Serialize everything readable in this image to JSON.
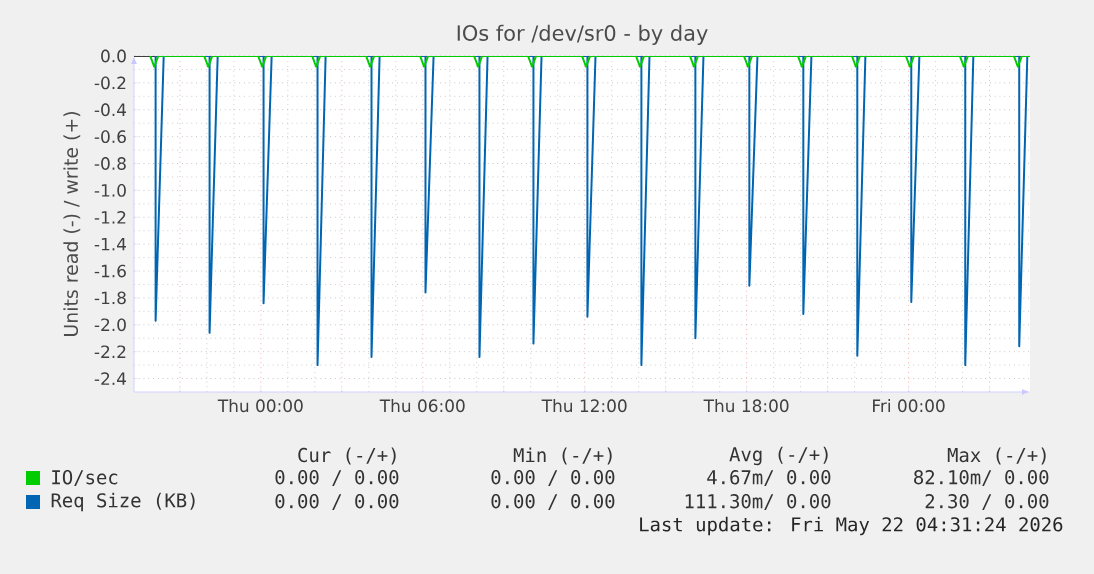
{
  "chart_data": {
    "type": "line",
    "title": "IOs for /dev/sr0 - by day",
    "ylabel": "Units read (-) / write (+)",
    "xlim": [
      "2026-05-20T19:18",
      "2026-05-22T04:30"
    ],
    "ylim": [
      -2.5,
      0
    ],
    "xticks": [
      {
        "value": "2026-05-20T21:00",
        "label": null
      },
      {
        "value": "2026-05-21T00:00",
        "label": "Thu 00:00"
      },
      {
        "value": "2026-05-21T03:00",
        "label": null
      },
      {
        "value": "2026-05-21T06:00",
        "label": "Thu 06:00"
      },
      {
        "value": "2026-05-21T09:00",
        "label": null
      },
      {
        "value": "2026-05-21T12:00",
        "label": "Thu 12:00"
      },
      {
        "value": "2026-05-21T15:00",
        "label": null
      },
      {
        "value": "2026-05-21T18:00",
        "label": "Thu 18:00"
      },
      {
        "value": "2026-05-21T21:00",
        "label": null
      },
      {
        "value": "2026-05-22T00:00",
        "label": "Fri 00:00"
      },
      {
        "value": "2026-05-22T03:00",
        "label": null
      }
    ],
    "yticks": [
      {
        "value": 0,
        "label": "0.0"
      },
      {
        "value": -0.2,
        "label": "-0.2"
      },
      {
        "value": -0.4,
        "label": "-0.4"
      },
      {
        "value": -0.6,
        "label": "-0.6"
      },
      {
        "value": -0.8,
        "label": "-0.8"
      },
      {
        "value": -1.0,
        "label": "-1.0"
      },
      {
        "value": -1.2,
        "label": "-1.2"
      },
      {
        "value": -1.4,
        "label": "-1.4"
      },
      {
        "value": -1.6,
        "label": "-1.6"
      },
      {
        "value": -1.8,
        "label": "-1.8"
      },
      {
        "value": -2.0,
        "label": "-2.0"
      },
      {
        "value": -2.2,
        "label": "-2.2"
      },
      {
        "value": -2.4,
        "label": "-2.4"
      }
    ],
    "grid": true,
    "legend": "bottom",
    "marker": "none",
    "line_style": "solid",
    "ref_lines": [
      {
        "axis": "y",
        "value": 0,
        "color": "#000000"
      }
    ],
    "series": [
      {
        "name": "IO/sec",
        "color": "#00cc00",
        "x": [
          "2026-05-20T19:54",
          "2026-05-20T20:03",
          "2026-05-20T20:12",
          "2026-05-20T21:54",
          "2026-05-20T22:03",
          "2026-05-20T22:12",
          "2026-05-20T23:54",
          "2026-05-21T00:03",
          "2026-05-21T00:12",
          "2026-05-21T01:54",
          "2026-05-21T02:03",
          "2026-05-21T02:12",
          "2026-05-21T03:54",
          "2026-05-21T04:03",
          "2026-05-21T04:12",
          "2026-05-21T05:54",
          "2026-05-21T06:03",
          "2026-05-21T06:12",
          "2026-05-21T07:54",
          "2026-05-21T08:03",
          "2026-05-21T08:12",
          "2026-05-21T09:54",
          "2026-05-21T10:03",
          "2026-05-21T10:12",
          "2026-05-21T11:54",
          "2026-05-21T12:03",
          "2026-05-21T12:12",
          "2026-05-21T13:54",
          "2026-05-21T14:03",
          "2026-05-21T14:12",
          "2026-05-21T15:54",
          "2026-05-21T16:03",
          "2026-05-21T16:12",
          "2026-05-21T17:54",
          "2026-05-21T18:03",
          "2026-05-21T18:12",
          "2026-05-21T19:54",
          "2026-05-21T20:03",
          "2026-05-21T20:12",
          "2026-05-21T21:54",
          "2026-05-21T22:03",
          "2026-05-21T22:12",
          "2026-05-21T23:54",
          "2026-05-22T00:03",
          "2026-05-22T00:12",
          "2026-05-22T01:54",
          "2026-05-22T02:03",
          "2026-05-22T02:12",
          "2026-05-22T03:54",
          "2026-05-22T04:03",
          "2026-05-22T04:12",
          "2026-05-22T04:30"
        ],
        "values": [
          0,
          -0.08,
          0,
          0,
          -0.08,
          0,
          0,
          -0.08,
          0,
          0,
          -0.08,
          0,
          0,
          -0.08,
          0,
          0,
          -0.08,
          0,
          0,
          -0.08,
          0,
          0,
          -0.08,
          0,
          0,
          -0.08,
          0,
          0,
          -0.08,
          0,
          0,
          -0.08,
          0,
          0,
          -0.08,
          0,
          0,
          -0.08,
          0,
          0,
          -0.08,
          0,
          0,
          -0.08,
          0,
          0,
          -0.08,
          0,
          0,
          -0.08,
          0,
          0
        ]
      },
      {
        "name": "Req Size (KB)",
        "color": "#0066b3",
        "x": [
          "2026-05-20T20:06",
          "2026-05-20T20:06",
          "2026-05-20T20:24",
          "2026-05-20T22:06",
          "2026-05-20T22:06",
          "2026-05-20T22:24",
          "2026-05-21T00:06",
          "2026-05-21T00:06",
          "2026-05-21T00:24",
          "2026-05-21T02:06",
          "2026-05-21T02:06",
          "2026-05-21T02:24",
          "2026-05-21T04:06",
          "2026-05-21T04:06",
          "2026-05-21T04:24",
          "2026-05-21T06:06",
          "2026-05-21T06:06",
          "2026-05-21T06:24",
          "2026-05-21T08:06",
          "2026-05-21T08:06",
          "2026-05-21T08:24",
          "2026-05-21T10:06",
          "2026-05-21T10:06",
          "2026-05-21T10:24",
          "2026-05-21T12:06",
          "2026-05-21T12:06",
          "2026-05-21T12:24",
          "2026-05-21T14:06",
          "2026-05-21T14:06",
          "2026-05-21T14:24",
          "2026-05-21T16:06",
          "2026-05-21T16:06",
          "2026-05-21T16:24",
          "2026-05-21T18:06",
          "2026-05-21T18:06",
          "2026-05-21T18:24",
          "2026-05-21T20:06",
          "2026-05-21T20:06",
          "2026-05-21T20:24",
          "2026-05-21T22:06",
          "2026-05-21T22:06",
          "2026-05-21T22:24",
          "2026-05-22T00:06",
          "2026-05-22T00:06",
          "2026-05-22T00:24",
          "2026-05-22T02:06",
          "2026-05-22T02:06",
          "2026-05-22T02:24",
          "2026-05-22T04:06",
          "2026-05-22T04:06",
          "2026-05-22T04:24",
          "2026-05-22T04:30"
        ],
        "values": [
          0,
          -1.97,
          0,
          0,
          -2.06,
          0,
          0,
          -1.84,
          0,
          0,
          -2.3,
          0,
          0,
          -2.24,
          0,
          0,
          -1.76,
          0,
          0,
          -2.24,
          0,
          0,
          -2.14,
          0,
          0,
          -1.94,
          0,
          0,
          -2.3,
          0,
          0,
          -2.1,
          0,
          0,
          -1.71,
          0,
          0,
          -1.92,
          0,
          0,
          -2.23,
          0,
          0,
          -1.83,
          0,
          0,
          -2.3,
          0,
          0,
          -2.16,
          0,
          0
        ]
      }
    ],
    "annotations": [
      "Cur (-/+)",
      "Min (-/+)",
      "Avg (-/+)",
      "Max (-/+)",
      "0.00 /  0.00",
      "0.00 /  0.00",
      "4.67m/  0.00",
      "82.10m/  0.00",
      "0.00 /  0.00",
      "0.00 /  0.00",
      "111.30m/  0.00",
      "2.30 /  0.00",
      "Last update: Fri May 22 04:31:24 2026"
    ]
  }
}
